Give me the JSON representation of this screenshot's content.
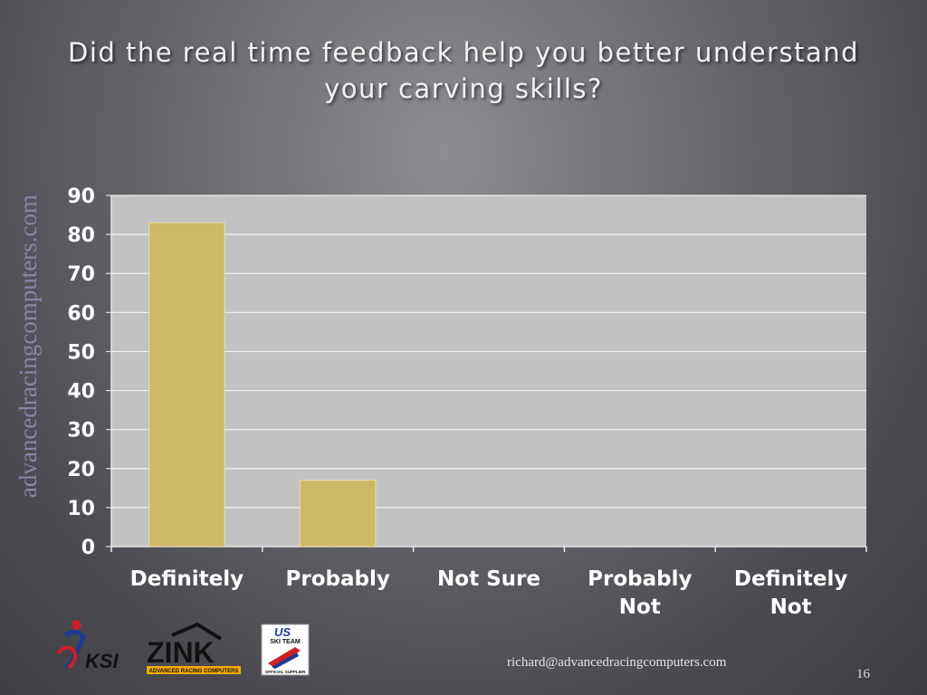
{
  "slide": {
    "title_line1": "Did the real time feedback help you better understand",
    "title_line2": "your carving skills?",
    "side_text": "advancedracingcomputers.com",
    "footer_email": "richard@advancedracingcomputers.com",
    "page_number": "16"
  },
  "logos": [
    {
      "name": "ksi-logo",
      "text": "KSI"
    },
    {
      "name": "zink-logo",
      "text": "ZINK",
      "subtext": "ADVANCED RACING COMPUTERS"
    },
    {
      "name": "us-ski-team-logo",
      "text": "US",
      "subtext": "SKI TEAM",
      "caption": "OFFICIAL SUPPLIER"
    }
  ],
  "colors": {
    "bar": "#cdb865",
    "plot_bg": "#c2c2c2",
    "gridline": "#f0f0f0",
    "tick_text": "#ffffff",
    "logo_red": "#cc2026",
    "logo_blue": "#1f3a8f"
  },
  "chart_data": {
    "type": "bar",
    "categories": [
      "Definitely",
      "Probably",
      "Not Sure",
      "Probably Not",
      "Definitely Not"
    ],
    "values": [
      83,
      17,
      0,
      0,
      0
    ],
    "title": "Did the real time feedback help you better understand your carving skills?",
    "xlabel": "",
    "ylabel": "",
    "ylim": [
      0,
      90
    ],
    "yticks": [
      0,
      10,
      20,
      30,
      40,
      50,
      60,
      70,
      80,
      90
    ],
    "grid": true,
    "legend": "none"
  }
}
